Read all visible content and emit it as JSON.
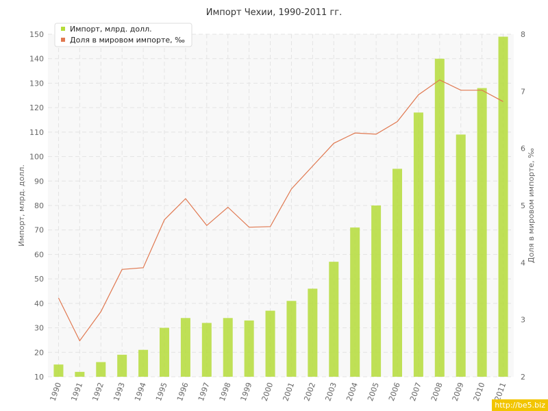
{
  "chart_data": {
    "type": "bar+line",
    "title": "Импорт Чехии, 1990-2011 гг.",
    "categories": [
      "1990",
      "1991",
      "1992",
      "1993",
      "1994",
      "1995",
      "1996",
      "1997",
      "1998",
      "1999",
      "2000",
      "2001",
      "2002",
      "2003",
      "2004",
      "2005",
      "2006",
      "2007",
      "2008",
      "2009",
      "2010",
      "2011"
    ],
    "series": [
      {
        "name": "Импорт, млрд. долл.",
        "type": "bar",
        "axis": "left",
        "color": "#b5dc3a",
        "values": [
          15,
          12,
          16,
          19,
          21,
          30,
          34,
          32,
          34,
          33,
          37,
          41,
          46,
          57,
          71,
          80,
          95,
          118,
          140,
          109,
          128,
          149
        ]
      },
      {
        "name": "Доля в мировом импорте, ‰",
        "type": "line",
        "axis": "right",
        "color": "#e07850",
        "values": [
          3.38,
          2.63,
          3.14,
          3.88,
          3.91,
          4.75,
          5.12,
          4.65,
          4.97,
          4.62,
          4.63,
          5.29,
          5.69,
          6.09,
          6.27,
          6.25,
          6.47,
          6.94,
          7.2,
          7.02,
          7.02,
          6.82
        ]
      }
    ],
    "ylabel": "Импорт, млрд. долл.",
    "y2label": "Доля в мировом импорте, ‰",
    "ylim": [
      10,
      150
    ],
    "y2lim": [
      2,
      8
    ],
    "yticks": [
      10,
      20,
      30,
      40,
      50,
      60,
      70,
      80,
      90,
      100,
      110,
      120,
      130,
      140,
      150
    ],
    "y2ticks": [
      2,
      3,
      4,
      5,
      6,
      7,
      8
    ],
    "grid": true,
    "legend": "top-left"
  },
  "watermark": "http://be5.biz",
  "colors": {
    "bar": "#b5dc3a",
    "line": "#e07850",
    "grid": "#e3e3e3",
    "plot_bg": "#f8f8f8"
  }
}
